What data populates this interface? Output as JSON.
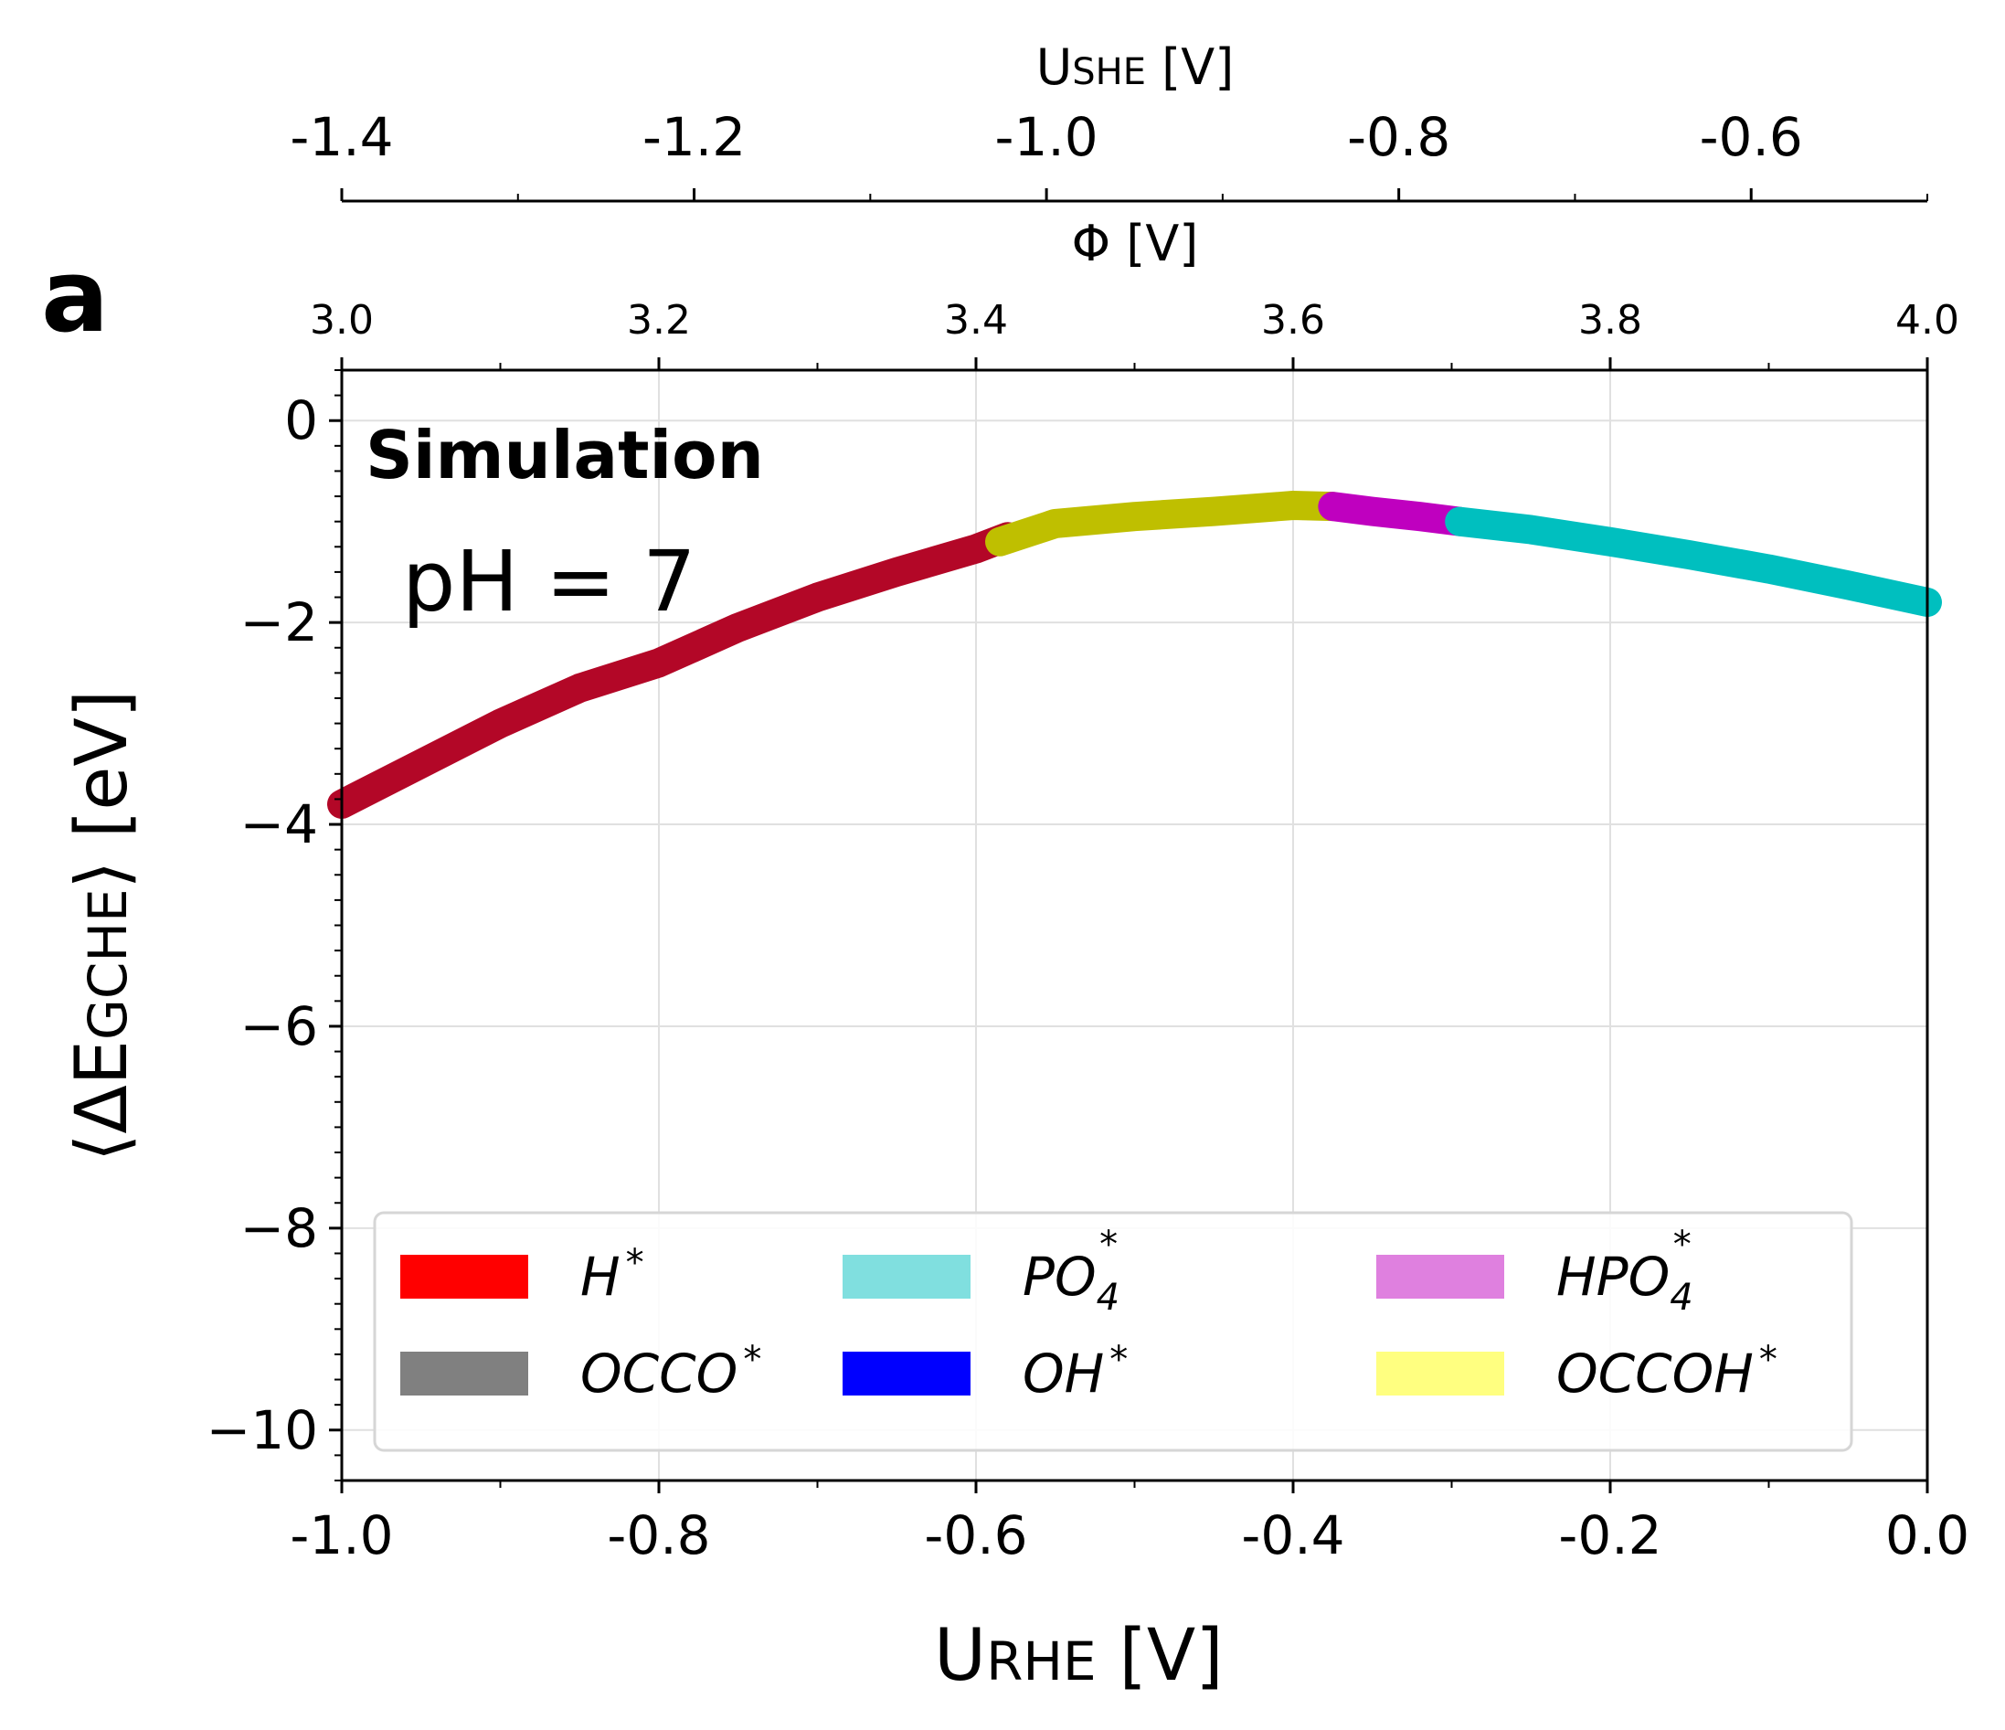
{
  "panel_label": "a",
  "annotations": {
    "simulation": "Simulation",
    "ph": "pH = 7"
  },
  "axes": {
    "bottom": {
      "label_main": "U",
      "label_sub": "RHE",
      "label_tail": " [V]",
      "range": [
        -1.0,
        0.0
      ],
      "ticks": [
        -1.0,
        -0.8,
        -0.6,
        -0.4,
        -0.2,
        0.0
      ],
      "tick_labels": [
        "-1.0",
        "-0.8",
        "-0.6",
        "-0.4",
        "-0.2",
        "0.0"
      ]
    },
    "left": {
      "label_pre": "⟨ΔE",
      "label_sub": "GCHE",
      "label_tail": "⟩ [eV]",
      "range": [
        -10.5,
        0.5
      ],
      "ticks": [
        0,
        -2,
        -4,
        -6,
        -8,
        -10
      ],
      "tick_labels": [
        "0",
        "−2",
        "−4",
        "−6",
        "−8",
        "−10"
      ]
    },
    "top_phi": {
      "label": "Φ [V]",
      "range": [
        3.0,
        4.0
      ],
      "ticks": [
        3.0,
        3.2,
        3.4,
        3.6,
        3.8,
        4.0
      ],
      "tick_labels": [
        "3.0",
        "3.2",
        "3.4",
        "3.6",
        "3.8",
        "4.0"
      ]
    },
    "top_she": {
      "label_main": "U",
      "label_sub": "SHE",
      "label_tail": " [V]",
      "range": [
        -1.4,
        -0.5
      ],
      "ticks": [
        -1.4,
        -1.2,
        -1.0,
        -0.8,
        -0.6
      ],
      "tick_labels": [
        "-1.4",
        "-1.2",
        "-1.0",
        "-0.8",
        "-0.6"
      ]
    }
  },
  "chart_data": {
    "type": "line",
    "grid": true,
    "legend_placement": "lower-center",
    "x_label": "URHE [V]",
    "y_label": "⟨ΔEGCHE⟩ [eV]",
    "xlim": [
      -1.0,
      0.0
    ],
    "ylim": [
      -10.5,
      0.5
    ],
    "series": [
      {
        "name": "H*",
        "color": "#b30727",
        "x": [
          -1.0,
          -0.95,
          -0.9,
          -0.85,
          -0.8,
          -0.75,
          -0.7,
          -0.65,
          -0.6,
          -0.58
        ],
        "y": [
          -3.8,
          -3.4,
          -3.0,
          -2.65,
          -2.4,
          -2.05,
          -1.75,
          -1.5,
          -1.27,
          -1.15
        ]
      },
      {
        "name": "OCCOH*",
        "color": "#bfbf00",
        "x": [
          -0.585,
          -0.55,
          -0.5,
          -0.45,
          -0.4,
          -0.375
        ],
        "y": [
          -1.2,
          -1.02,
          -0.95,
          -0.9,
          -0.84,
          -0.85
        ]
      },
      {
        "name": "HPO4*",
        "color": "#bf00bf",
        "x": [
          -0.375,
          -0.35,
          -0.32,
          -0.295
        ],
        "y": [
          -0.85,
          -0.9,
          -0.95,
          -1.0
        ]
      },
      {
        "name": "PO4*",
        "color": "#00bfbf",
        "x": [
          -0.295,
          -0.25,
          -0.2,
          -0.15,
          -0.1,
          -0.05,
          0.0
        ],
        "y": [
          -1.0,
          -1.08,
          -1.2,
          -1.33,
          -1.47,
          -1.63,
          -1.8
        ]
      }
    ],
    "legend": [
      {
        "label": "H",
        "color": "#ff0000"
      },
      {
        "label": "OCCO",
        "color": "#808080"
      },
      {
        "label": "PO",
        "sub": "4",
        "color": "#80dfdf"
      },
      {
        "label": "OH",
        "color": "#0000ff"
      },
      {
        "label": "HPO",
        "sub": "4",
        "color": "#df80df"
      },
      {
        "label": "OCCOH",
        "color": "#ffff80"
      }
    ],
    "legend_star": "*"
  }
}
